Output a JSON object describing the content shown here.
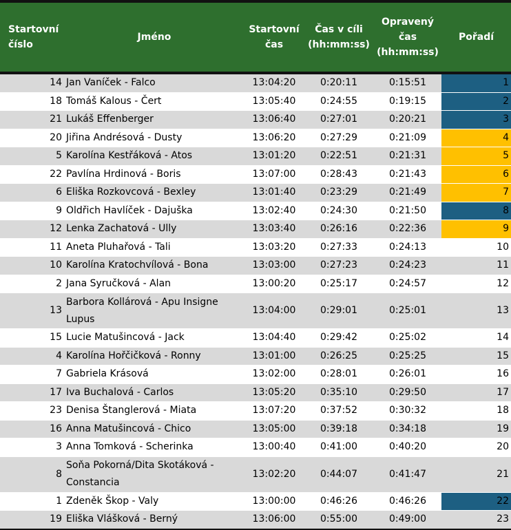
{
  "headers": {
    "start_number": "Startovní číslo",
    "name": "Jméno",
    "start_time": "Startovní čas",
    "finish_time": "Čas v cíli (hh:mm:ss)",
    "corrected_time": "Opravený čas (hh:mm:ss)",
    "rank": "Pořadí"
  },
  "colors": {
    "header_bg": "#2e6f2e",
    "rank_blue": "#1d5f82",
    "rank_gold": "#ffc000",
    "row_stripe": "#d9d9d9"
  },
  "rows": [
    {
      "num": "14",
      "name": "Jan Vaníček - Falco",
      "start": "13:04:20",
      "finish": "0:20:11",
      "corrected": "0:15:51",
      "rank": "1",
      "highlight": "blue"
    },
    {
      "num": "18",
      "name": "Tomáš Kalous - Čert",
      "start": "13:05:40",
      "finish": "0:24:55",
      "corrected": "0:19:15",
      "rank": "2",
      "highlight": "blue"
    },
    {
      "num": "21",
      "name": "Lukáš Effenberger",
      "start": "13:06:40",
      "finish": "0:27:01",
      "corrected": "0:20:21",
      "rank": "3",
      "highlight": "blue"
    },
    {
      "num": "20",
      "name": "Jiřina Andrésová - Dusty",
      "start": "13:06:20",
      "finish": "0:27:29",
      "corrected": "0:21:09",
      "rank": "4",
      "highlight": "gold"
    },
    {
      "num": "5",
      "name": "Karolína Kestřáková - Atos",
      "start": "13:01:20",
      "finish": "0:22:51",
      "corrected": "0:21:31",
      "rank": "5",
      "highlight": "gold"
    },
    {
      "num": "22",
      "name": "Pavlína Hrdinová - Boris",
      "start": "13:07:00",
      "finish": "0:28:43",
      "corrected": "0:21:43",
      "rank": "6",
      "highlight": "gold"
    },
    {
      "num": "6",
      "name": "Eliška Rozkovcová - Bexley",
      "start": "13:01:40",
      "finish": "0:23:29",
      "corrected": "0:21:49",
      "rank": "7",
      "highlight": "gold"
    },
    {
      "num": "9",
      "name": "Oldřich Havlíček - Dajuška",
      "start": "13:02:40",
      "finish": "0:24:30",
      "corrected": "0:21:50",
      "rank": "8",
      "highlight": "blue"
    },
    {
      "num": "12",
      "name": "Lenka Zachatová - Ully",
      "start": "13:03:40",
      "finish": "0:26:16",
      "corrected": "0:22:36",
      "rank": "9",
      "highlight": "gold"
    },
    {
      "num": "11",
      "name": "Aneta Pluhařová - Tali",
      "start": "13:03:20",
      "finish": "0:27:33",
      "corrected": "0:24:13",
      "rank": "10",
      "highlight": ""
    },
    {
      "num": "10",
      "name": "Karolína Kratochvílová - Bona",
      "start": "13:03:00",
      "finish": "0:27:23",
      "corrected": "0:24:23",
      "rank": "11",
      "highlight": ""
    },
    {
      "num": "2",
      "name": "Jana Syručková - Alan",
      "start": "13:00:20",
      "finish": "0:25:17",
      "corrected": "0:24:57",
      "rank": "12",
      "highlight": ""
    },
    {
      "num": "13",
      "name": "Barbora Kollárová - Apu Insigne Lupus",
      "start": "13:04:00",
      "finish": "0:29:01",
      "corrected": "0:25:01",
      "rank": "13",
      "highlight": "",
      "tall": true
    },
    {
      "num": "15",
      "name": "Lucie Matušincová - Jack",
      "start": "13:04:40",
      "finish": "0:29:42",
      "corrected": "0:25:02",
      "rank": "14",
      "highlight": ""
    },
    {
      "num": "4",
      "name": "Karolína Hořčičková - Ronny",
      "start": "13:01:00",
      "finish": "0:26:25",
      "corrected": "0:25:25",
      "rank": "15",
      "highlight": ""
    },
    {
      "num": "7",
      "name": "Gabriela Krásová",
      "start": "13:02:00",
      "finish": "0:28:01",
      "corrected": "0:26:01",
      "rank": "16",
      "highlight": ""
    },
    {
      "num": "17",
      "name": "Iva Buchalová - Carlos",
      "start": "13:05:20",
      "finish": "0:35:10",
      "corrected": "0:29:50",
      "rank": "17",
      "highlight": ""
    },
    {
      "num": "23",
      "name": "Denisa Štanglerová - Miata",
      "start": "13:07:20",
      "finish": "0:37:52",
      "corrected": "0:30:32",
      "rank": "18",
      "highlight": ""
    },
    {
      "num": "16",
      "name": "Anna Matušincová - Chico",
      "start": "13:05:00",
      "finish": "0:39:18",
      "corrected": "0:34:18",
      "rank": "19",
      "highlight": ""
    },
    {
      "num": "3",
      "name": "Anna Tomková - Scherinka",
      "start": "13:00:40",
      "finish": "0:41:00",
      "corrected": "0:40:20",
      "rank": "20",
      "highlight": ""
    },
    {
      "num": "8",
      "name": "Soňa Pokorná/Dita Skotáková - Constancia",
      "start": "13:02:20",
      "finish": "0:44:07",
      "corrected": "0:41:47",
      "rank": "21",
      "highlight": "",
      "tall": true
    },
    {
      "num": "1",
      "name": "Zdeněk Škop - Valy",
      "start": "13:00:00",
      "finish": "0:46:26",
      "corrected": "0:46:26",
      "rank": "22",
      "highlight": "blue"
    },
    {
      "num": "19",
      "name": "Eliška Vlášková - Berný",
      "start": "13:06:00",
      "finish": "0:55:00",
      "corrected": "0:49:00",
      "rank": "23",
      "highlight": ""
    }
  ]
}
